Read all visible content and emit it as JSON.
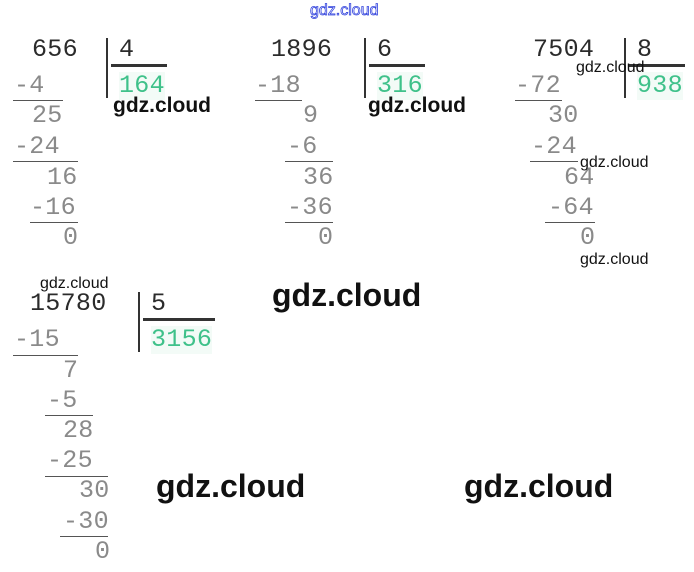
{
  "watermark": "gdz.cloud",
  "problems": [
    {
      "dividend": "656",
      "divisor": "4",
      "quotient": "164",
      "steps": [
        "-4",
        "25",
        "-24",
        "16",
        "-16",
        "0"
      ]
    },
    {
      "dividend": "1896",
      "divisor": "6",
      "quotient": "316",
      "steps": [
        "-18",
        "9",
        "-6",
        "36",
        "-36",
        "0"
      ]
    },
    {
      "dividend": "7504",
      "divisor": "8",
      "quotient": "938",
      "steps": [
        "-72",
        "30",
        "-24",
        "64",
        "-64",
        "0"
      ]
    },
    {
      "dividend": "15780",
      "divisor": "5",
      "quotient": "3156",
      "steps": [
        "-15",
        "7",
        "-5",
        "28",
        "-25",
        "30",
        "-30",
        "0"
      ]
    }
  ],
  "colors": {
    "quotient": "#3fc18a",
    "steps": "#8a8a8a",
    "dividend": "#2b2b2b"
  }
}
